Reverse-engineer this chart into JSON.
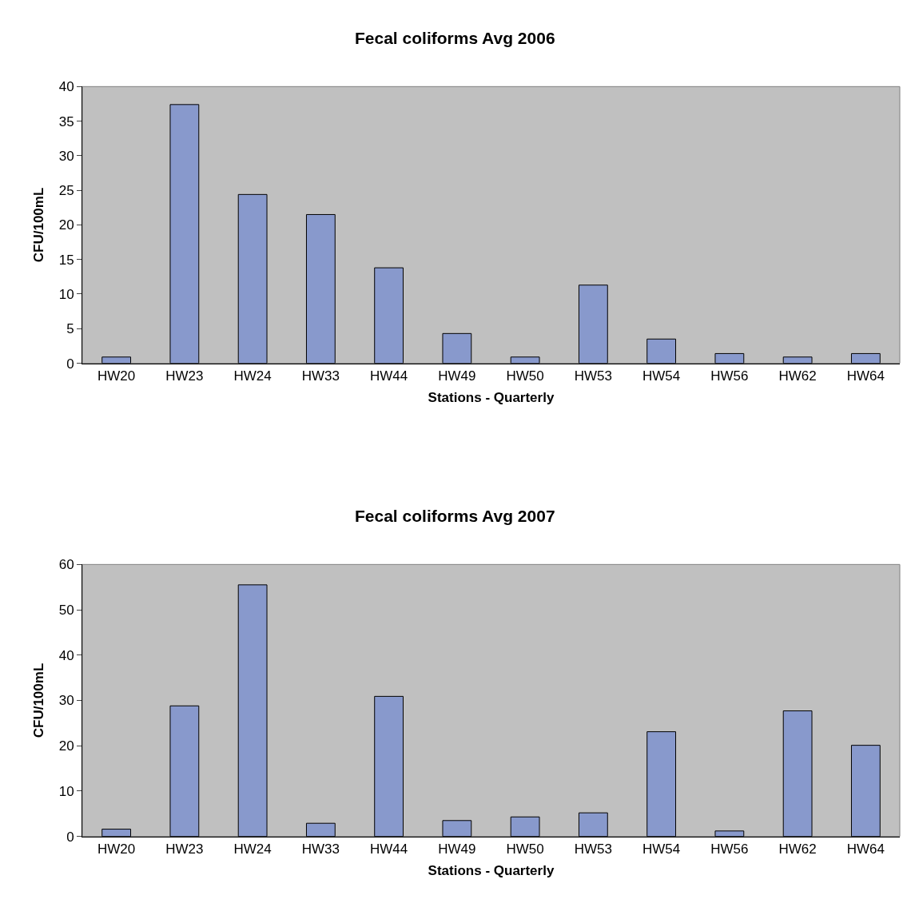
{
  "chart_data": [
    {
      "type": "bar",
      "title": "Fecal coliforms Avg 2006",
      "xlabel": "Stations - Quarterly",
      "ylabel": "CFU/100mL",
      "categories": [
        "HW20",
        "HW23",
        "HW24",
        "HW33",
        "HW44",
        "HW49",
        "HW50",
        "HW53",
        "HW54",
        "HW56",
        "HW62",
        "HW64"
      ],
      "values": [
        0.9,
        37.4,
        24.4,
        21.5,
        13.8,
        4.3,
        0.9,
        11.3,
        3.5,
        1.4,
        0.9,
        1.4
      ],
      "color": "#8899cc",
      "ylim": [
        0,
        40
      ],
      "yticks": [
        0,
        5,
        10,
        15,
        20,
        25,
        30,
        35,
        40
      ],
      "grid": false
    },
    {
      "type": "bar",
      "title": "Fecal coliforms Avg 2007",
      "xlabel": "Stations - Quarterly",
      "ylabel": "CFU/100mL",
      "categories": [
        "HW20",
        "HW23",
        "HW24",
        "HW33",
        "HW44",
        "HW49",
        "HW50",
        "HW53",
        "HW54",
        "HW56",
        "HW62",
        "HW64"
      ],
      "values": [
        1.6,
        28.8,
        55.5,
        2.9,
        30.9,
        3.5,
        4.3,
        5.2,
        23.1,
        1.2,
        27.7,
        20.1
      ],
      "color": "#8899cc",
      "ylim": [
        0,
        60
      ],
      "yticks": [
        0,
        10,
        20,
        30,
        40,
        50,
        60
      ],
      "grid": false
    }
  ]
}
